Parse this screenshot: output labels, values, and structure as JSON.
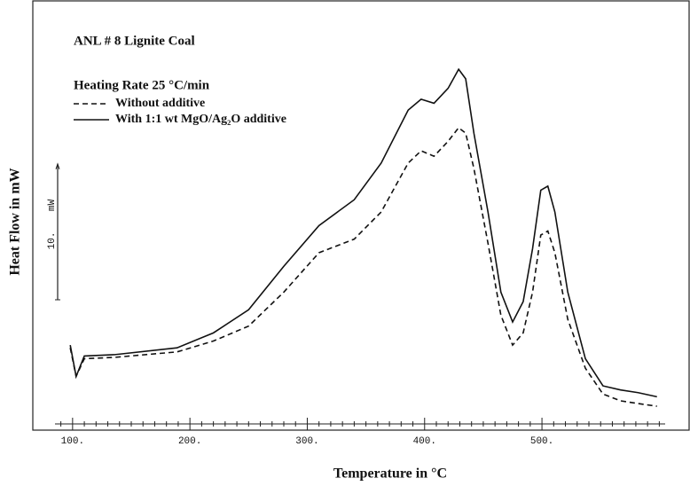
{
  "chart_data": {
    "type": "line",
    "title": "ANL # 8 Lignite Coal",
    "subtitle": "Heating Rate 25 °C/min",
    "x_label": "Temperature in °C",
    "y_label": "Heat Flow in mW",
    "x": [
      98,
      103,
      110,
      136,
      189,
      220,
      250,
      280,
      310,
      340,
      363,
      386,
      397,
      408,
      420,
      429,
      435,
      442,
      454,
      465,
      475,
      484,
      492,
      499,
      505,
      511,
      522,
      537,
      552,
      567,
      582,
      598
    ],
    "series": [
      {
        "name": "Without additive",
        "color": "#111111",
        "dash": "dashed",
        "values": [
          5.6,
          3.5,
          4.8,
          4.9,
          5.3,
          6.1,
          7.2,
          9.7,
          12.6,
          13.6,
          15.6,
          19.2,
          20.1,
          19.7,
          20.8,
          21.8,
          21.4,
          18.8,
          13.3,
          8.0,
          5.8,
          6.7,
          9.7,
          13.9,
          14.2,
          12.6,
          7.7,
          4.1,
          2.2,
          1.7,
          1.5,
          1.3
        ]
      },
      {
        "name": "With 1:1 wt MgO/Ag₂O additive",
        "color": "#111111",
        "dash": "solid",
        "values": [
          5.8,
          3.5,
          5.0,
          5.1,
          5.6,
          6.7,
          8.4,
          11.6,
          14.6,
          16.5,
          19.2,
          23.1,
          23.9,
          23.6,
          24.7,
          26.1,
          25.4,
          21.4,
          15.6,
          9.7,
          7.5,
          9.0,
          12.9,
          17.2,
          17.5,
          15.6,
          9.7,
          4.8,
          2.8,
          2.5,
          2.3,
          2.0
        ]
      }
    ],
    "xlim": [
      85,
      605
    ],
    "xticks": [
      {
        "value": 100,
        "label": "100."
      },
      {
        "value": 200,
        "label": "200."
      },
      {
        "value": 300,
        "label": "300."
      },
      {
        "value": 400,
        "label": "400."
      },
      {
        "value": 500,
        "label": "500."
      }
    ],
    "xminorticks": [
      90,
      110,
      120,
      130,
      140,
      150,
      160,
      170,
      180,
      190,
      210,
      220,
      230,
      240,
      250,
      260,
      270,
      280,
      290,
      310,
      320,
      330,
      340,
      350,
      360,
      370,
      380,
      390,
      410,
      420,
      430,
      440,
      450,
      460,
      470,
      480,
      490,
      510,
      520,
      530,
      540,
      550,
      560,
      570,
      580,
      590,
      600
    ],
    "ylim": [
      0,
      31.2
    ],
    "scale_bar": {
      "value": 10,
      "label": "10.",
      "unit": "mW"
    }
  }
}
